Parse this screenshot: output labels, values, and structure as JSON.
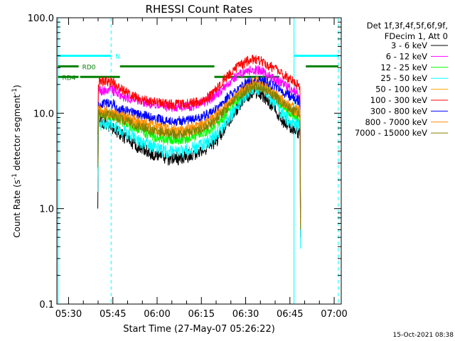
{
  "chart_data": {
    "type": "line",
    "title": "RHESSI Count Rates",
    "xlabel": "Start Time (27-May-07 05:26:22)",
    "ylabel_main": "Count Rate (s",
    "ylabel_sup1": "-1",
    "ylabel_mid": " detector segment",
    "ylabel_sup2": "-1",
    "ylabel_end": ")",
    "y_scale": "log",
    "ylim": [
      0.1,
      100.0
    ],
    "y_ticks": [
      {
        "value": 0.1,
        "label": "0.1"
      },
      {
        "value": 1.0,
        "label": "1.0"
      },
      {
        "value": 10.0,
        "label": "10.0"
      },
      {
        "value": 100.0,
        "label": "100.0"
      }
    ],
    "xlim_minutes": [
      -0.37,
      96.0
    ],
    "x_ticks": [
      {
        "minute": 3.6,
        "label": "05:30"
      },
      {
        "minute": 18.6,
        "label": "05:45"
      },
      {
        "minute": 33.6,
        "label": "06:00"
      },
      {
        "minute": 48.6,
        "label": "06:15"
      },
      {
        "minute": 63.6,
        "label": "06:30"
      },
      {
        "minute": 78.6,
        "label": "06:45"
      },
      {
        "minute": 93.6,
        "label": "07:00"
      }
    ],
    "legend_header": [
      "Det 1f,3f,4f,5f,6f,9f,",
      "FDecim 1, Att 0"
    ],
    "legend_placement": "right",
    "series": [
      {
        "name": "3 - 6 keV",
        "color": "#000000",
        "points": [
          [
            13.5,
            1.0
          ],
          [
            13.7,
            8.5
          ],
          [
            15,
            8.2
          ],
          [
            18,
            7.2
          ],
          [
            22,
            5.8
          ],
          [
            26,
            4.7
          ],
          [
            30,
            4.0
          ],
          [
            34,
            3.5
          ],
          [
            38,
            3.3
          ],
          [
            42,
            3.4
          ],
          [
            46,
            3.7
          ],
          [
            50,
            4.2
          ],
          [
            54,
            5.3
          ],
          [
            58,
            8.5
          ],
          [
            62,
            13
          ],
          [
            66,
            17
          ],
          [
            69,
            16
          ],
          [
            72,
            12.5
          ],
          [
            76,
            8.5
          ],
          [
            80,
            6.8
          ],
          [
            82,
            6.2
          ],
          [
            82.2,
            0.5
          ]
        ]
      },
      {
        "name": "6 - 12 keV",
        "color": "#ff00ff",
        "points": [
          [
            13.5,
            5.0
          ],
          [
            13.7,
            17
          ],
          [
            16,
            17.5
          ],
          [
            20,
            17
          ],
          [
            22,
            15
          ],
          [
            26,
            14
          ],
          [
            30,
            13
          ],
          [
            34,
            12
          ],
          [
            38,
            11.5
          ],
          [
            42,
            11.7
          ],
          [
            46,
            12
          ],
          [
            50,
            13.2
          ],
          [
            54,
            16
          ],
          [
            58,
            21
          ],
          [
            62,
            26
          ],
          [
            66,
            29
          ],
          [
            69,
            27.5
          ],
          [
            72,
            24
          ],
          [
            76,
            20.5
          ],
          [
            80,
            17
          ],
          [
            82,
            15
          ],
          [
            82.2,
            0.9
          ]
        ]
      },
      {
        "name": "12 - 25 keV",
        "color": "#00ff00",
        "points": [
          [
            13.5,
            2.5
          ],
          [
            13.7,
            9.8
          ],
          [
            16,
            9.5
          ],
          [
            20,
            8.8
          ],
          [
            24,
            7.5
          ],
          [
            28,
            6.5
          ],
          [
            32,
            5.8
          ],
          [
            36,
            5.3
          ],
          [
            40,
            5.2
          ],
          [
            44,
            5.4
          ],
          [
            48,
            6.0
          ],
          [
            52,
            6.8
          ],
          [
            56,
            9.0
          ],
          [
            60,
            13
          ],
          [
            64,
            18
          ],
          [
            67,
            21
          ],
          [
            70,
            19.5
          ],
          [
            74,
            14
          ],
          [
            78,
            10.2
          ],
          [
            82,
            8.5
          ],
          [
            82.2,
            0.6
          ]
        ]
      },
      {
        "name": "25 - 50 keV",
        "color": "#00ffff",
        "points": [
          [
            13.5,
            1.5
          ],
          [
            13.7,
            7.8
          ],
          [
            16,
            7.6
          ],
          [
            20,
            7.0
          ],
          [
            24,
            6.0
          ],
          [
            28,
            5.0
          ],
          [
            32,
            4.4
          ],
          [
            36,
            4.0
          ],
          [
            40,
            3.9
          ],
          [
            44,
            4.1
          ],
          [
            48,
            4.5
          ],
          [
            52,
            5.3
          ],
          [
            56,
            7.2
          ],
          [
            60,
            11
          ],
          [
            64,
            16
          ],
          [
            67,
            18.5
          ],
          [
            70,
            17
          ],
          [
            74,
            12
          ],
          [
            78,
            8.5
          ],
          [
            82,
            7.0
          ],
          [
            82.2,
            0.38
          ]
        ]
      },
      {
        "name": "50 - 100 keV",
        "color": "#ffa500",
        "points": [
          [
            13.5,
            2.8
          ],
          [
            13.7,
            10.5
          ],
          [
            16,
            10.2
          ],
          [
            20,
            9.5
          ],
          [
            24,
            8.5
          ],
          [
            28,
            7.5
          ],
          [
            32,
            6.8
          ],
          [
            36,
            6.3
          ],
          [
            40,
            6.2
          ],
          [
            44,
            6.4
          ],
          [
            48,
            7.0
          ],
          [
            52,
            8.0
          ],
          [
            56,
            10.5
          ],
          [
            60,
            15
          ],
          [
            64,
            20
          ],
          [
            67,
            22
          ],
          [
            70,
            20
          ],
          [
            74,
            15
          ],
          [
            78,
            11.5
          ],
          [
            82,
            9.5
          ],
          [
            82.2,
            0.7
          ]
        ]
      },
      {
        "name": "100 - 300 keV",
        "color": "#ff0000",
        "points": [
          [
            13.5,
            6.0
          ],
          [
            13.7,
            21
          ],
          [
            16,
            21.5
          ],
          [
            19,
            21
          ],
          [
            20,
            19
          ],
          [
            24,
            16
          ],
          [
            28,
            14
          ],
          [
            32,
            13
          ],
          [
            36,
            12.5
          ],
          [
            40,
            12.3
          ],
          [
            44,
            12.5
          ],
          [
            48,
            13.2
          ],
          [
            52,
            15.5
          ],
          [
            56,
            22
          ],
          [
            60,
            29
          ],
          [
            64,
            35
          ],
          [
            66,
            37
          ],
          [
            69,
            35
          ],
          [
            72,
            31
          ],
          [
            76,
            26
          ],
          [
            80,
            21
          ],
          [
            82,
            19
          ],
          [
            82.2,
            1.0
          ]
        ]
      },
      {
        "name": "300 - 800 keV",
        "color": "#0000ff",
        "points": [
          [
            13.5,
            3.5
          ],
          [
            13.7,
            12.5
          ],
          [
            16,
            12.6
          ],
          [
            19,
            12.4
          ],
          [
            20,
            11
          ],
          [
            24,
            10.4
          ],
          [
            28,
            9.6
          ],
          [
            32,
            8.9
          ],
          [
            36,
            8.4
          ],
          [
            40,
            8.2
          ],
          [
            44,
            8.4
          ],
          [
            48,
            8.9
          ],
          [
            52,
            10.2
          ],
          [
            56,
            13.2
          ],
          [
            60,
            17.5
          ],
          [
            64,
            21
          ],
          [
            67,
            22.5
          ],
          [
            70,
            21.5
          ],
          [
            74,
            18.5
          ],
          [
            78,
            15.5
          ],
          [
            82,
            13.2
          ],
          [
            82.2,
            0.8
          ]
        ]
      },
      {
        "name": "800 - 7000 keV",
        "color": "#ff8c00",
        "points": [
          [
            13.5,
            3.0
          ],
          [
            13.7,
            10.8
          ],
          [
            16,
            10.6
          ],
          [
            20,
            10
          ],
          [
            24,
            9.0
          ],
          [
            28,
            8.2
          ],
          [
            32,
            7.5
          ],
          [
            36,
            7.0
          ],
          [
            40,
            6.8
          ],
          [
            44,
            7.0
          ],
          [
            48,
            7.6
          ],
          [
            52,
            8.6
          ],
          [
            56,
            11
          ],
          [
            60,
            15
          ],
          [
            64,
            18.5
          ],
          [
            67,
            19.8
          ],
          [
            70,
            19
          ],
          [
            74,
            15.5
          ],
          [
            78,
            12.5
          ],
          [
            82,
            10.5
          ],
          [
            82.2,
            0.7
          ]
        ]
      },
      {
        "name": "7000 - 15000 keV",
        "color": "#808000",
        "points": [
          [
            13.5,
            2.7
          ],
          [
            13.7,
            9.8
          ],
          [
            16,
            9.6
          ],
          [
            20,
            9.0
          ],
          [
            24,
            8.0
          ],
          [
            28,
            7.2
          ],
          [
            32,
            6.6
          ],
          [
            36,
            6.2
          ],
          [
            40,
            6.0
          ],
          [
            44,
            6.2
          ],
          [
            48,
            6.8
          ],
          [
            52,
            7.8
          ],
          [
            56,
            10.2
          ],
          [
            60,
            14
          ],
          [
            64,
            17.5
          ],
          [
            67,
            19
          ],
          [
            70,
            18
          ],
          [
            74,
            14.5
          ],
          [
            78,
            11.5
          ],
          [
            82,
            9.5
          ],
          [
            82.2,
            0.6
          ]
        ]
      }
    ],
    "vertical_lines": [
      {
        "minute": 0.0,
        "style": "solid",
        "color": "#00ffff"
      },
      {
        "minute": 18.0,
        "style": "dashed",
        "color": "#00ffff"
      },
      {
        "minute": 80.0,
        "style": "solid",
        "color": "#00ffff"
      },
      {
        "minute": 95.0,
        "style": "dashed",
        "color": "#00ffff"
      }
    ],
    "state_bars": [
      {
        "label": "N",
        "color": "#00ffff",
        "level": 40.0,
        "segments": [
          [
            0,
            18
          ],
          [
            80,
            95
          ]
        ]
      },
      {
        "label": "RD0",
        "color": "#008000",
        "level": 31.0,
        "segments": [
          [
            0,
            7
          ],
          [
            21,
            53
          ],
          [
            84,
            95
          ]
        ]
      },
      {
        "label": "RD4",
        "color": "#008000",
        "level": 24.0,
        "segments": [
          [
            0,
            7
          ],
          [
            7.5,
            21
          ],
          [
            53,
            75
          ]
        ]
      }
    ],
    "timestamp": "15-Oct-2021 08:38"
  }
}
